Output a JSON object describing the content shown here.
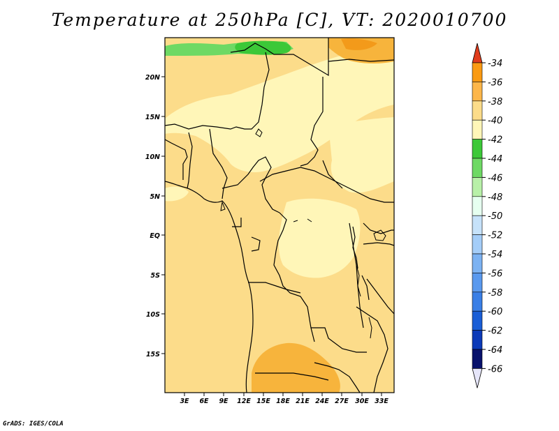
{
  "title": "Temperature at 250hPa [C], VT: 2020010700",
  "credit": "GrADS: IGES/COLA",
  "map": {
    "lat_labels": [
      "20N",
      "15N",
      "10N",
      "5N",
      "EQ",
      "5S",
      "10S",
      "15S"
    ],
    "lon_labels": [
      "3E",
      "6E",
      "9E",
      "12E",
      "15E",
      "18E",
      "21E",
      "24E",
      "27E",
      "30E",
      "33E"
    ],
    "land_color": "#fcdc8a",
    "ocean_color": "#fcdc8a",
    "light_band_color": "#fff6b8",
    "warm_patch_color": "#f7b43c",
    "cold_patch_green": "#3cc838",
    "cold_patch_light_green": "#6ed964"
  },
  "colorbar": {
    "labels": [
      "-34",
      "-36",
      "-38",
      "-40",
      "-42",
      "-44",
      "-46",
      "-48",
      "-50",
      "-52",
      "-54",
      "-56",
      "-58",
      "-60",
      "-62",
      "-64",
      "-66"
    ],
    "colors": [
      "#f06c00",
      "#fa9a12",
      "#fdb64a",
      "#fcdc8a",
      "#fff6b8",
      "#3cc838",
      "#6ed964",
      "#b8f0a8",
      "#e6fff0",
      "#c6e2fa",
      "#a4cdf8",
      "#7cb2f2",
      "#5a99ee",
      "#3a7fe6",
      "#1a5ed6",
      "#0c3ab8",
      "#08126c"
    ],
    "top_arrow_color": "#e03c1c",
    "bottom_arrow_color": "#e6e6fa"
  }
}
